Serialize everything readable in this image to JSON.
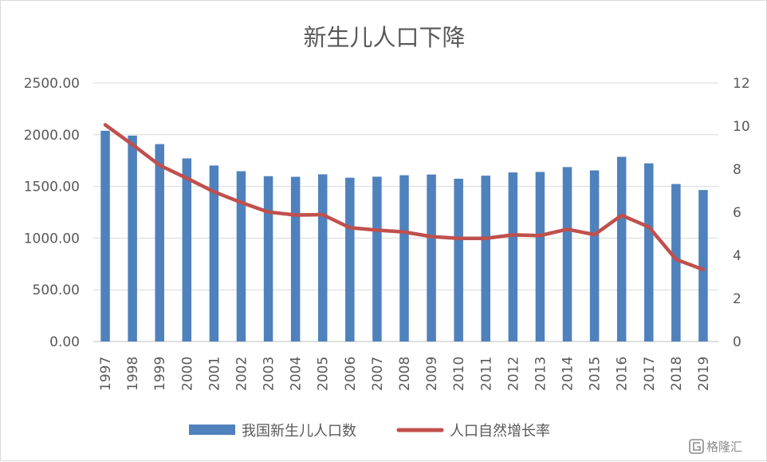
{
  "chart_data": {
    "type": "bar",
    "title": "新生儿人口下降",
    "categories": [
      "1997",
      "1998",
      "1999",
      "2000",
      "2001",
      "2002",
      "2003",
      "2004",
      "2005",
      "2006",
      "2007",
      "2008",
      "2009",
      "2010",
      "2011",
      "2012",
      "2013",
      "2014",
      "2015",
      "2016",
      "2017",
      "2018",
      "2019"
    ],
    "series": [
      {
        "name": "我国新生儿人口数",
        "type": "bar",
        "axis": "left",
        "color": "#4f81bd",
        "values": [
          2038,
          1991,
          1909,
          1771,
          1702,
          1647,
          1599,
          1593,
          1617,
          1584,
          1594,
          1608,
          1615,
          1574,
          1604,
          1635,
          1640,
          1687,
          1655,
          1786,
          1723,
          1523,
          1465
        ]
      },
      {
        "name": "人口自然增长率",
        "type": "line",
        "axis": "right",
        "color": "#c0504d",
        "values": [
          10.06,
          9.14,
          8.18,
          7.58,
          6.95,
          6.45,
          6.01,
          5.87,
          5.89,
          5.28,
          5.17,
          5.08,
          4.87,
          4.79,
          4.79,
          4.95,
          4.92,
          5.21,
          4.96,
          5.86,
          5.32,
          3.81,
          3.34
        ]
      }
    ],
    "y_left": {
      "min": 0,
      "max": 2500,
      "step": 500,
      "tick_labels": [
        "0.00",
        "500.00",
        "1000.00",
        "1500.00",
        "2000.00",
        "2500.00"
      ]
    },
    "y_right": {
      "min": 0,
      "max": 12,
      "step": 2,
      "tick_labels": [
        "0",
        "2",
        "4",
        "6",
        "8",
        "10",
        "12"
      ]
    },
    "grid": true,
    "legend_position": "bottom"
  },
  "watermark": {
    "text": "格隆汇",
    "icon": "gelonghui-logo-icon"
  }
}
